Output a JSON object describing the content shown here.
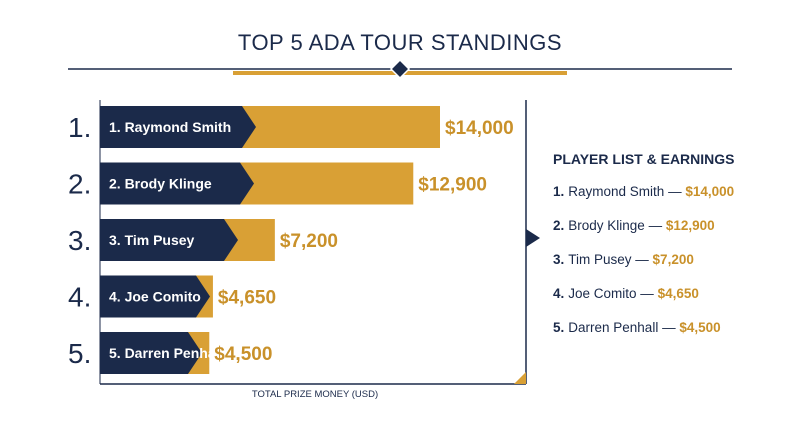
{
  "title": "TOP 5 ADA TOUR STANDINGS",
  "colors": {
    "navy": "#1b2a4a",
    "gold": "#d9a035",
    "gold_dark": "#c9912a"
  },
  "sidebar": {
    "title": "PLAYER LIST & EARNINGS",
    "items": [
      {
        "rank": "1.",
        "name": "Raymond Smith",
        "amount": "$14,000"
      },
      {
        "rank": "2.",
        "name": "Brody Klinge",
        "amount": "$12,900"
      },
      {
        "rank": "3.",
        "name": "Tim Pusey",
        "amount": "$7,200"
      },
      {
        "rank": "4.",
        "name": "Joe Comito",
        "amount": "$4,650"
      },
      {
        "rank": "5.",
        "name": "Darren Penhall",
        "amount": "$4,500"
      }
    ]
  },
  "chart_data": {
    "type": "bar",
    "orientation": "horizontal",
    "xlabel": "TOTAL PRIZE MONEY (USD)",
    "rank_labels": [
      "1.",
      "2.",
      "3.",
      "4.",
      "5."
    ],
    "categories": [
      "1. Raymond Smith",
      "2. Brody Klinge",
      "3. Tim Pusey",
      "4. Joe Comito",
      "5. Darren Penhall"
    ],
    "values": [
      14000,
      12900,
      7200,
      4650,
      4500
    ],
    "value_labels": [
      "$14,000",
      "$12,900",
      "$7,200",
      "$4,650",
      "$4,500"
    ],
    "grid": false
  }
}
